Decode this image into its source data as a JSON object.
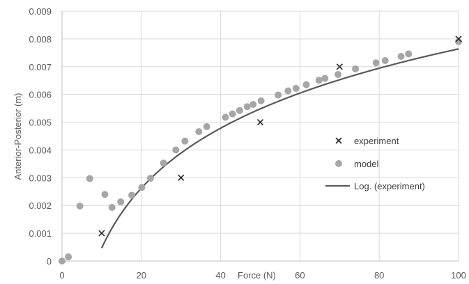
{
  "chart_data": {
    "type": "scatter",
    "title": "",
    "xlabel": "Force (N)",
    "ylabel": "Anterior-Posterior (m)",
    "xlim": [
      0,
      100
    ],
    "ylim": [
      0,
      0.009
    ],
    "x_ticks": [
      "0",
      "20",
      "40",
      "60",
      "80",
      "100"
    ],
    "y_ticks": [
      "0",
      "0.001",
      "0.002",
      "0.003",
      "0.004",
      "0.005",
      "0.006",
      "0.007",
      "0.008",
      "0.009"
    ],
    "grid": true,
    "legend_position": "right",
    "series": [
      {
        "name": "experiment",
        "marker": "x",
        "color": "#262626",
        "points": [
          [
            10,
            0.001
          ],
          [
            30,
            0.003
          ],
          [
            50,
            0.005
          ],
          [
            70,
            0.007
          ],
          [
            100,
            0.008
          ]
        ]
      },
      {
        "name": "model",
        "marker": "circle",
        "color": "#a6a6a6",
        "points": [
          [
            0,
            0.0
          ],
          [
            1.6,
            0.00015
          ],
          [
            4.5,
            0.00198
          ],
          [
            7,
            0.00297
          ],
          [
            10.8,
            0.0024
          ],
          [
            12.6,
            0.00193
          ],
          [
            14.8,
            0.00213
          ],
          [
            17.6,
            0.00237
          ],
          [
            20.1,
            0.00265
          ],
          [
            22.3,
            0.00298
          ],
          [
            25.6,
            0.00353
          ],
          [
            28.7,
            0.004
          ],
          [
            31,
            0.00432
          ],
          [
            34.5,
            0.00466
          ],
          [
            36.5,
            0.00484
          ],
          [
            41.2,
            0.00518
          ],
          [
            43,
            0.0053
          ],
          [
            44.8,
            0.00542
          ],
          [
            46.7,
            0.00556
          ],
          [
            48.2,
            0.00564
          ],
          [
            50.2,
            0.00577
          ],
          [
            54.5,
            0.00598
          ],
          [
            57,
            0.00613
          ],
          [
            59,
            0.00622
          ],
          [
            61.6,
            0.00635
          ],
          [
            64.8,
            0.00651
          ],
          [
            66.3,
            0.00658
          ],
          [
            69.6,
            0.00672
          ],
          [
            74,
            0.00692
          ],
          [
            79.2,
            0.00714
          ],
          [
            81.5,
            0.00722
          ],
          [
            85.5,
            0.00737
          ],
          [
            87.4,
            0.00746
          ],
          [
            100,
            0.0079
          ]
        ]
      },
      {
        "name": "Log. (experiment)",
        "type": "trendline",
        "fit": "logarithmic",
        "color": "#595959",
        "x_range": [
          10,
          100
        ],
        "points": [
          [
            10,
            0.0005
          ],
          [
            20,
            0.0027
          ],
          [
            30,
            0.004
          ],
          [
            40,
            0.0049
          ],
          [
            50,
            0.0056
          ],
          [
            60,
            0.0061
          ],
          [
            70,
            0.0066
          ],
          [
            80,
            0.007
          ],
          [
            90,
            0.0073
          ],
          [
            100,
            0.0076
          ]
        ]
      }
    ]
  }
}
